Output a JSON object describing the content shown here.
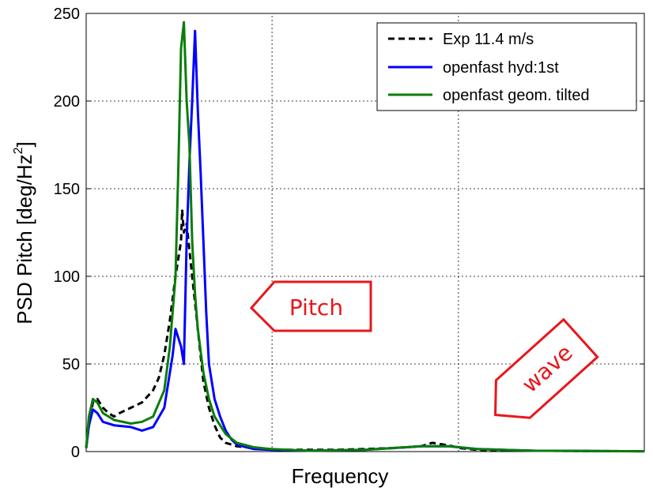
{
  "chart_data": {
    "type": "line",
    "title": "",
    "xlabel": "Frequency",
    "ylabel": "PSD Pitch [deg/Hz",
    "ylabel_superscript": "2",
    "ylabel_suffix": "]",
    "xlim": [
      0,
      1
    ],
    "ylim": [
      0,
      250
    ],
    "yticks": [
      0,
      50,
      100,
      150,
      200,
      250
    ],
    "xgrid": [
      0.333,
      0.667
    ],
    "grid": true,
    "legend_position": "top-right",
    "annotations": [
      {
        "text": "Pitch",
        "color": "#e8161b",
        "x": 0.33,
        "y": 82,
        "shape": "left-arrow"
      },
      {
        "text": "wave",
        "color": "#e8161b",
        "x": 0.75,
        "y": 20,
        "shape": "down-left-arrow"
      }
    ],
    "series": [
      {
        "name": "Exp 11.4 m/s",
        "color": "#000000",
        "style": "dashed",
        "x": [
          0,
          0.005,
          0.012,
          0.02,
          0.03,
          0.04,
          0.05,
          0.06,
          0.08,
          0.1,
          0.12,
          0.13,
          0.14,
          0.15,
          0.16,
          0.17,
          0.172,
          0.175,
          0.18,
          0.185,
          0.19,
          0.195,
          0.2,
          0.205,
          0.21,
          0.22,
          0.23,
          0.24,
          0.25,
          0.27,
          0.3,
          0.35,
          0.45,
          0.5,
          0.55,
          0.6,
          0.62,
          0.63,
          0.65,
          0.67,
          0.7,
          0.8,
          0.9,
          1.0
        ],
        "y": [
          2,
          15,
          28,
          30,
          25,
          22,
          20,
          22,
          25,
          28,
          35,
          42,
          55,
          75,
          100,
          120,
          138,
          125,
          130,
          115,
          100,
          85,
          70,
          55,
          40,
          25,
          15,
          8,
          5,
          3,
          2,
          1,
          1,
          1.5,
          2,
          3,
          5,
          4.5,
          3.5,
          2,
          1,
          0.5,
          0.3,
          0.2
        ]
      },
      {
        "name": "openfast hyd:1st",
        "color": "#0000ff",
        "style": "solid",
        "x": [
          0,
          0.005,
          0.012,
          0.02,
          0.03,
          0.05,
          0.08,
          0.1,
          0.12,
          0.14,
          0.155,
          0.16,
          0.17,
          0.175,
          0.18,
          0.185,
          0.19,
          0.195,
          0.2,
          0.205,
          0.21,
          0.215,
          0.22,
          0.23,
          0.24,
          0.25,
          0.26,
          0.27,
          0.28,
          0.3,
          0.33,
          0.4,
          0.5,
          0.6,
          0.65,
          0.7,
          0.8,
          1.0
        ],
        "y": [
          2,
          15,
          24,
          22,
          17,
          15,
          14,
          12,
          14,
          25,
          55,
          70,
          60,
          50,
          120,
          165,
          200,
          240,
          195,
          160,
          120,
          80,
          50,
          30,
          20,
          12,
          7,
          4,
          3,
          1.5,
          1,
          0.5,
          1,
          3,
          3,
          1.5,
          0.5,
          0.2
        ]
      },
      {
        "name": "openfast geom. tilted",
        "color": "#0a7d0a",
        "style": "solid",
        "x": [
          0,
          0.005,
          0.012,
          0.02,
          0.03,
          0.05,
          0.08,
          0.1,
          0.12,
          0.14,
          0.15,
          0.16,
          0.165,
          0.17,
          0.175,
          0.18,
          0.185,
          0.19,
          0.195,
          0.2,
          0.21,
          0.22,
          0.23,
          0.25,
          0.27,
          0.3,
          0.33,
          0.4,
          0.5,
          0.6,
          0.65,
          0.7,
          0.8,
          1.0
        ],
        "y": [
          2,
          20,
          30,
          28,
          22,
          18,
          16,
          17,
          20,
          35,
          60,
          100,
          160,
          230,
          245,
          200,
          175,
          120,
          90,
          70,
          45,
          30,
          20,
          10,
          5,
          2.5,
          1.5,
          0.5,
          1,
          3,
          3,
          1.5,
          0.5,
          0.2
        ]
      }
    ]
  }
}
